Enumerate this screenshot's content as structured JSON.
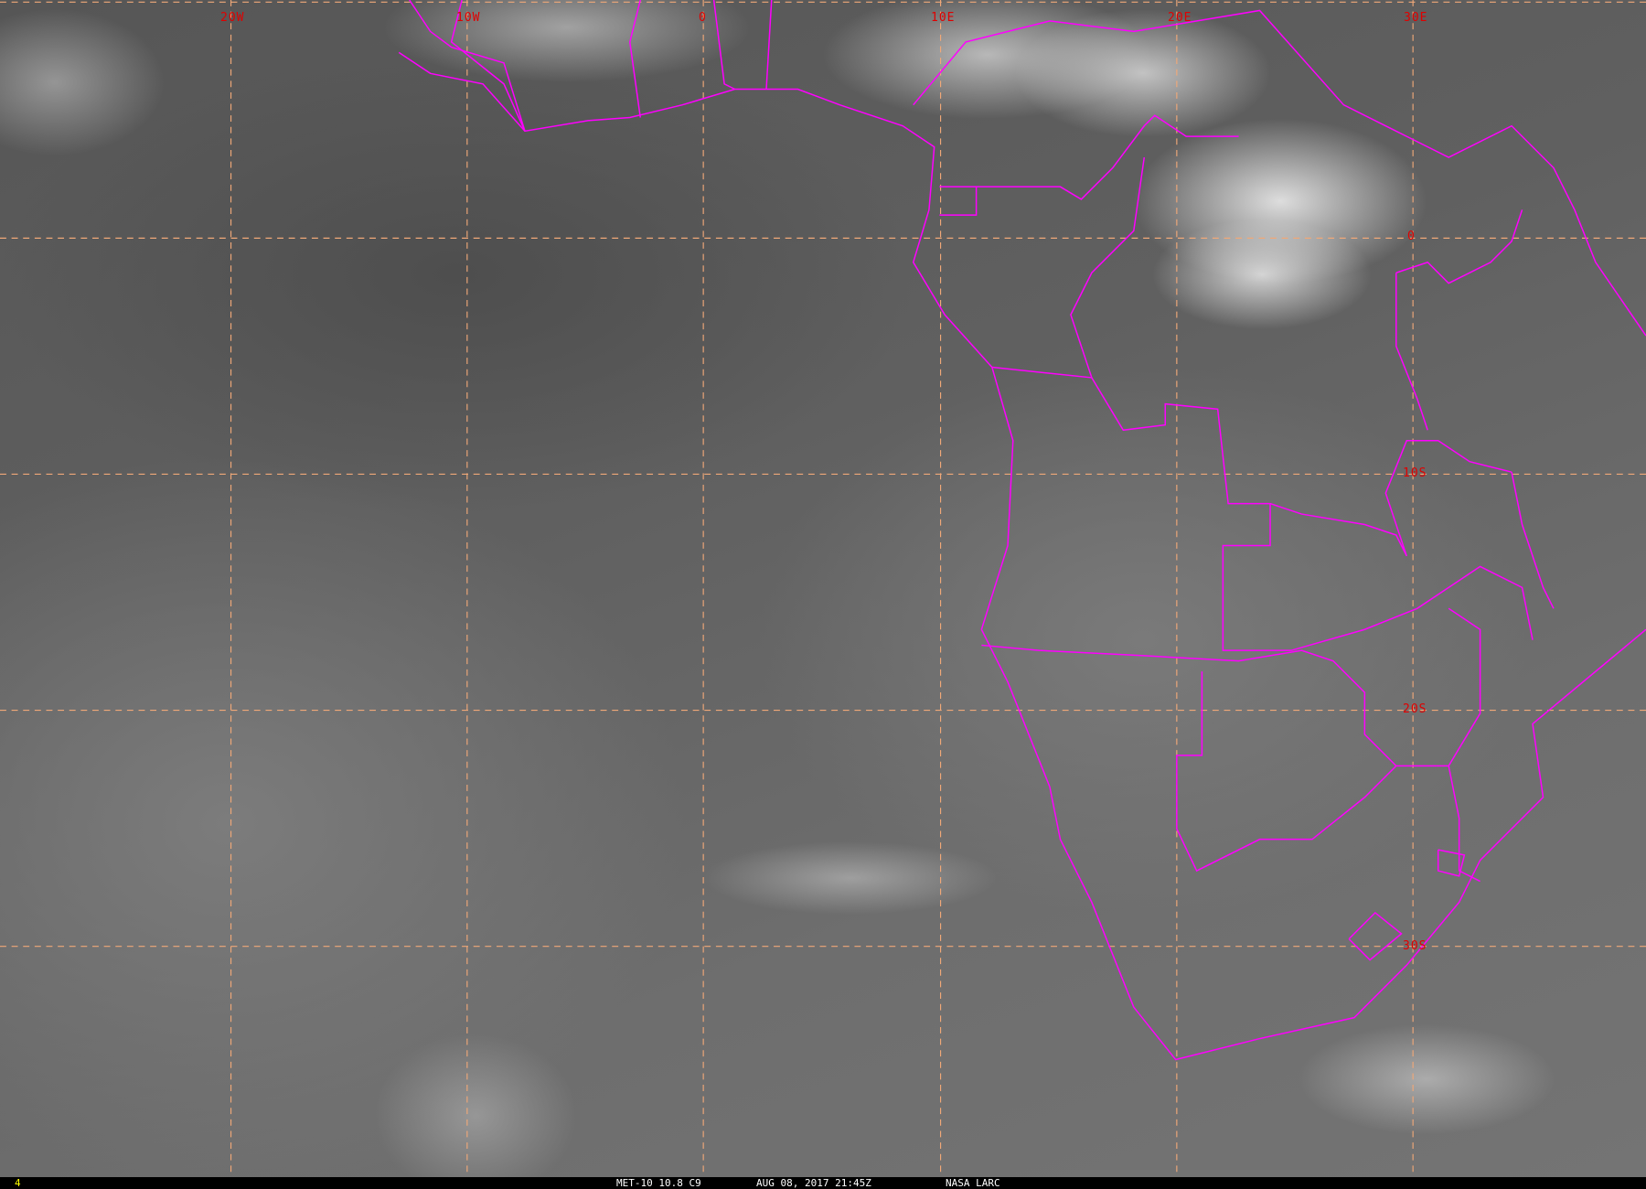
{
  "map": {
    "longitude_labels": [
      "20W",
      "10W",
      "0",
      "10E",
      "20E",
      "30E"
    ],
    "latitude_labels": [
      "0",
      "10S",
      "20S",
      "30S"
    ],
    "colors": {
      "grid": "#f0a878",
      "borders": "#ff00ff",
      "labels": "#e00000",
      "frame_number": "#ffff00"
    }
  },
  "status_bar": {
    "frame_number": "4",
    "satellite_channel": "MET-10 10.8 C9",
    "datetime": "AUG 08, 2017 21:45Z",
    "source": "NASA LARC"
  }
}
